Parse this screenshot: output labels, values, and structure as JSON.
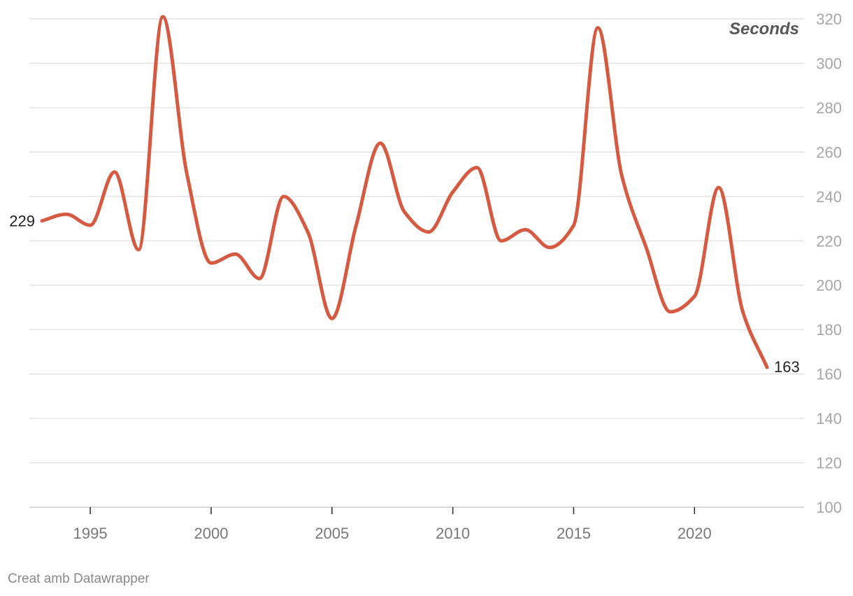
{
  "chart_data": {
    "type": "line",
    "x": [
      1993,
      1994,
      1995,
      1996,
      1997,
      1998,
      1999,
      2000,
      2001,
      2002,
      2003,
      2004,
      2005,
      2006,
      2007,
      2008,
      2009,
      2010,
      2011,
      2012,
      2013,
      2014,
      2015,
      2016,
      2017,
      2018,
      2019,
      2020,
      2021,
      2022,
      2023
    ],
    "series": [
      {
        "values": [
          229,
          232,
          227,
          251,
          216,
          321,
          250,
          210,
          214,
          203,
          240,
          224,
          185,
          227,
          264,
          233,
          224,
          242,
          253,
          220,
          225,
          217,
          227,
          316,
          249,
          217,
          188,
          195,
          244,
          188,
          163
        ],
        "color": "#d55a42"
      }
    ],
    "xticks": [
      "1995",
      "2000",
      "2005",
      "2010",
      "2015",
      "2020"
    ],
    "yticks": [
      "100",
      "120",
      "140",
      "160",
      "180",
      "200",
      "220",
      "240",
      "260",
      "280",
      "300",
      "320"
    ],
    "ylim": [
      100,
      320
    ],
    "xlim": [
      1992.6,
      1994.9,
      2023.9
    ],
    "unit_label": "Seconds",
    "start_label": "229",
    "end_label": "163",
    "grid": true,
    "y_axis_side": "right"
  },
  "footer": "Creat amb Datawrapper"
}
